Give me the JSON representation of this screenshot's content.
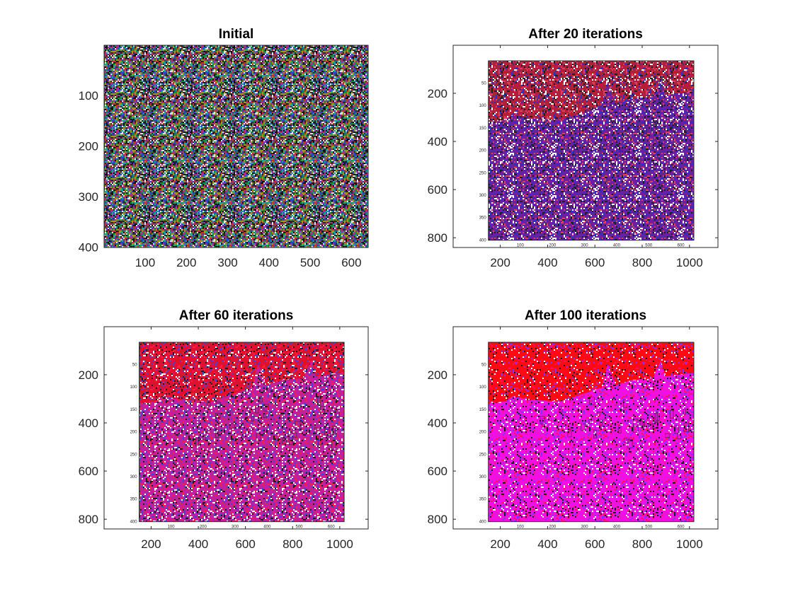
{
  "figure": {
    "background": "#ffffff"
  },
  "chart_data": [
    {
      "type": "heatmap",
      "title": "Initial",
      "xlabel": "",
      "ylabel": "",
      "xlim": [
        0.5,
        640.5
      ],
      "ylim": [
        0.5,
        400.5
      ],
      "y_reversed": true,
      "grid": false,
      "xticks": [
        100,
        200,
        300,
        400,
        500,
        600
      ],
      "yticks": [
        100,
        200,
        300,
        400
      ],
      "image": {
        "description_kind": "random RGB noise",
        "palette": [
          "#1b8a3a",
          "#c03030",
          "#3040c0",
          "#9a9a20",
          "#20a0a0",
          "#a030a0",
          "#101010",
          "#e0e0e0"
        ],
        "background": "#2a2a2a",
        "inner_axes": false
      }
    },
    {
      "type": "heatmap",
      "title": "After 20 iterations",
      "xlabel": "",
      "ylabel": "",
      "xlim": [
        0.5,
        1120.5
      ],
      "ylim": [
        0.5,
        840.5
      ],
      "y_reversed": true,
      "grid": false,
      "xticks": [
        200,
        400,
        600,
        800,
        1000
      ],
      "yticks": [
        200,
        400,
        600,
        800
      ],
      "image": {
        "description_kind": "embedded figure of the reconstructed image",
        "sky_color": "#b0203a",
        "ground_color": "#6a20a0",
        "noise_colors": [
          "#ffffff",
          "#3030c0",
          "#e04060",
          "#202020"
        ],
        "inner_axes": true,
        "inner_xticks": [
          100,
          200,
          300,
          400,
          500,
          600
        ],
        "inner_yticks": [
          50,
          100,
          150,
          200,
          250,
          300,
          350,
          400
        ],
        "inner_xlim": [
          0.5,
          640.5
        ],
        "inner_ylim": [
          0.5,
          400.5
        ]
      }
    },
    {
      "type": "heatmap",
      "title": "After 60 iterations",
      "xlabel": "",
      "ylabel": "",
      "xlim": [
        0.5,
        1120.5
      ],
      "ylim": [
        0.5,
        840.5
      ],
      "y_reversed": true,
      "grid": false,
      "xticks": [
        200,
        400,
        600,
        800,
        1000
      ],
      "yticks": [
        200,
        400,
        600,
        800
      ],
      "image": {
        "description_kind": "embedded figure of the reconstructed image",
        "sky_color": "#e01030",
        "ground_color": "#c020a0",
        "noise_colors": [
          "#ffffff",
          "#5040d0",
          "#ff2040",
          "#202020"
        ],
        "inner_axes": true,
        "inner_xticks": [
          100,
          200,
          300,
          400,
          500,
          600
        ],
        "inner_yticks": [
          50,
          100,
          150,
          200,
          250,
          300,
          350,
          400
        ],
        "inner_xlim": [
          0.5,
          640.5
        ],
        "inner_ylim": [
          0.5,
          400.5
        ]
      }
    },
    {
      "type": "heatmap",
      "title": "After 100 iterations",
      "xlabel": "",
      "ylabel": "",
      "xlim": [
        0.5,
        1120.5
      ],
      "ylim": [
        0.5,
        840.5
      ],
      "y_reversed": true,
      "grid": false,
      "xticks": [
        200,
        400,
        600,
        800,
        1000
      ],
      "yticks": [
        200,
        400,
        600,
        800
      ],
      "image": {
        "description_kind": "embedded figure of the reconstructed image",
        "sky_color": "#ff0a14",
        "ground_color": "#f010e0",
        "noise_colors": [
          "#ffffff",
          "#8030ff",
          "#ff1060",
          "#202020"
        ],
        "inner_axes": true,
        "inner_xticks": [
          100,
          200,
          300,
          400,
          500,
          600
        ],
        "inner_yticks": [
          50,
          100,
          150,
          200,
          250,
          300,
          350,
          400
        ],
        "inner_xlim": [
          0.5,
          640.5
        ],
        "inner_ylim": [
          0.5,
          400.5
        ]
      }
    }
  ]
}
